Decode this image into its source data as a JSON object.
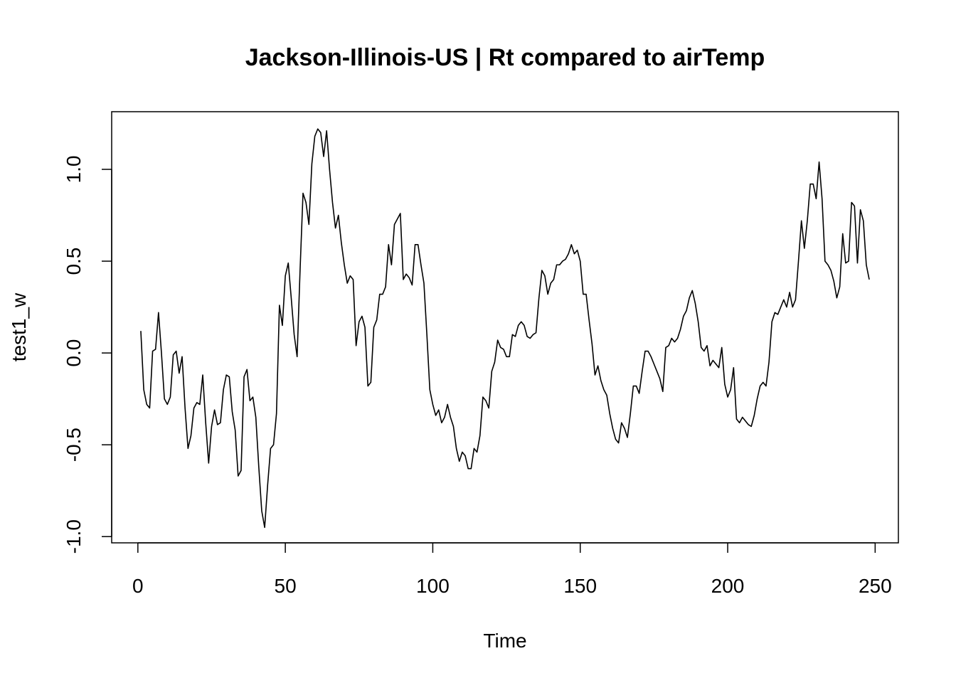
{
  "chart_data": {
    "type": "line",
    "title": "Jackson-Illinois-US | Rt compared to airTemp",
    "xlabel": "Time",
    "ylabel": "test1_w",
    "x": [
      1,
      2,
      3,
      4,
      5,
      6,
      7,
      8,
      9,
      10,
      11,
      12,
      13,
      14,
      15,
      16,
      17,
      18,
      19,
      20,
      21,
      22,
      23,
      24,
      25,
      26,
      27,
      28,
      29,
      30,
      31,
      32,
      33,
      34,
      35,
      36,
      37,
      38,
      39,
      40,
      41,
      42,
      43,
      44,
      45,
      46,
      47,
      48,
      49,
      50,
      51,
      52,
      53,
      54,
      55,
      56,
      57,
      58,
      59,
      60,
      61,
      62,
      63,
      64,
      65,
      66,
      67,
      68,
      69,
      70,
      71,
      72,
      73,
      74,
      75,
      76,
      77,
      78,
      79,
      80,
      81,
      82,
      83,
      84,
      85,
      86,
      87,
      88,
      89,
      90,
      91,
      92,
      93,
      94,
      95,
      96,
      97,
      98,
      99,
      100,
      101,
      102,
      103,
      104,
      105,
      106,
      107,
      108,
      109,
      110,
      111,
      112,
      113,
      114,
      115,
      116,
      117,
      118,
      119,
      120,
      121,
      122,
      123,
      124,
      125,
      126,
      127,
      128,
      129,
      130,
      131,
      132,
      133,
      134,
      135,
      136,
      137,
      138,
      139,
      140,
      141,
      142,
      143,
      144,
      145,
      146,
      147,
      148,
      149,
      150,
      151,
      152,
      153,
      154,
      155,
      156,
      157,
      158,
      159,
      160,
      161,
      162,
      163,
      164,
      165,
      166,
      167,
      168,
      169,
      170,
      171,
      172,
      173,
      174,
      175,
      176,
      177,
      178,
      179,
      180,
      181,
      182,
      183,
      184,
      185,
      186,
      187,
      188,
      189,
      190,
      191,
      192,
      193,
      194,
      195,
      196,
      197,
      198,
      199,
      200,
      201,
      202,
      203,
      204,
      205,
      206,
      207,
      208,
      209,
      210,
      211,
      212,
      213,
      214,
      215,
      216,
      217,
      218,
      219,
      220,
      221,
      222,
      223,
      224,
      225,
      226,
      227,
      228,
      229,
      230,
      231,
      232,
      233,
      234,
      235,
      236,
      237,
      238,
      239,
      240,
      241,
      242,
      243,
      244,
      245,
      246,
      247,
      248
    ],
    "series": [
      {
        "name": "test1_w",
        "color": "#000000",
        "values": [
          0.12,
          -0.2,
          -0.28,
          -0.3,
          0.01,
          0.02,
          0.22,
          0.0,
          -0.25,
          -0.28,
          -0.24,
          -0.01,
          0.01,
          -0.11,
          -0.02,
          -0.3,
          -0.52,
          -0.45,
          -0.3,
          -0.27,
          -0.28,
          -0.12,
          -0.38,
          -0.6,
          -0.4,
          -0.31,
          -0.39,
          -0.38,
          -0.2,
          -0.12,
          -0.13,
          -0.32,
          -0.42,
          -0.67,
          -0.64,
          -0.13,
          -0.09,
          -0.26,
          -0.24,
          -0.35,
          -0.62,
          -0.86,
          -0.95,
          -0.72,
          -0.52,
          -0.5,
          -0.33,
          0.26,
          0.15,
          0.42,
          0.49,
          0.3,
          0.1,
          -0.02,
          0.45,
          0.87,
          0.82,
          0.7,
          1.03,
          1.18,
          1.22,
          1.2,
          1.07,
          1.21,
          1.0,
          0.82,
          0.68,
          0.75,
          0.6,
          0.48,
          0.38,
          0.42,
          0.4,
          0.04,
          0.17,
          0.2,
          0.14,
          -0.18,
          -0.16,
          0.14,
          0.18,
          0.32,
          0.32,
          0.36,
          0.59,
          0.48,
          0.7,
          0.73,
          0.76,
          0.4,
          0.43,
          0.41,
          0.37,
          0.59,
          0.59,
          0.48,
          0.38,
          0.1,
          -0.2,
          -0.28,
          -0.34,
          -0.31,
          -0.38,
          -0.35,
          -0.28,
          -0.35,
          -0.4,
          -0.52,
          -0.59,
          -0.54,
          -0.56,
          -0.63,
          -0.63,
          -0.52,
          -0.54,
          -0.45,
          -0.24,
          -0.26,
          -0.3,
          -0.1,
          -0.05,
          0.07,
          0.03,
          0.02,
          -0.02,
          -0.02,
          0.1,
          0.09,
          0.15,
          0.17,
          0.15,
          0.09,
          0.08,
          0.1,
          0.11,
          0.3,
          0.45,
          0.42,
          0.32,
          0.38,
          0.4,
          0.48,
          0.48,
          0.5,
          0.51,
          0.54,
          0.59,
          0.54,
          0.56,
          0.5,
          0.32,
          0.32,
          0.18,
          0.05,
          -0.12,
          -0.07,
          -0.15,
          -0.2,
          -0.23,
          -0.33,
          -0.41,
          -0.47,
          -0.49,
          -0.38,
          -0.41,
          -0.46,
          -0.33,
          -0.18,
          -0.18,
          -0.22,
          -0.1,
          0.01,
          0.01,
          -0.02,
          -0.06,
          -0.1,
          -0.14,
          -0.21,
          0.03,
          0.04,
          0.08,
          0.06,
          0.08,
          0.13,
          0.2,
          0.23,
          0.3,
          0.34,
          0.27,
          0.17,
          0.03,
          0.01,
          0.04,
          -0.07,
          -0.04,
          -0.06,
          -0.08,
          0.03,
          -0.17,
          -0.24,
          -0.2,
          -0.08,
          -0.36,
          -0.38,
          -0.35,
          -0.37,
          -0.39,
          -0.4,
          -0.34,
          -0.25,
          -0.18,
          -0.16,
          -0.18,
          -0.05,
          0.17,
          0.22,
          0.21,
          0.25,
          0.29,
          0.25,
          0.33,
          0.25,
          0.29,
          0.5,
          0.72,
          0.57,
          0.72,
          0.92,
          0.92,
          0.84,
          1.04,
          0.84,
          0.5,
          0.48,
          0.45,
          0.39,
          0.3,
          0.36,
          0.65,
          0.49,
          0.5,
          0.82,
          0.8,
          0.49,
          0.78,
          0.72,
          0.48,
          0.4
        ]
      }
    ],
    "xlim": [
      -8.88,
      257.88
    ],
    "xticks": [
      0,
      50,
      100,
      150,
      200,
      250
    ],
    "ylim": [
      -1.034,
      1.314
    ],
    "yticks": [
      {
        "value": -1,
        "label": "-1.0"
      },
      -0.5,
      {
        "value": 0,
        "label": "0.0"
      },
      0.5,
      {
        "value": 1,
        "label": "1.0"
      }
    ],
    "grid": false
  }
}
